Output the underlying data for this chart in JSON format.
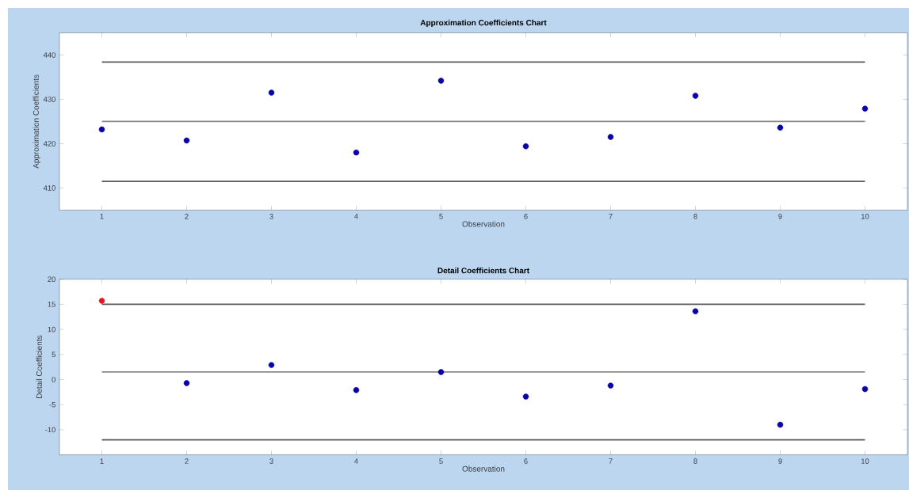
{
  "chart_data": [
    {
      "type": "scatter",
      "title": "Approximation Coefficients Chart",
      "xlabel": "Observation",
      "ylabel": "Approximation Coefficients",
      "x": [
        1,
        2,
        3,
        4,
        5,
        6,
        7,
        8,
        9,
        10
      ],
      "xlim": [
        0.5,
        10.5
      ],
      "xticks": [
        1,
        2,
        3,
        4,
        5,
        6,
        7,
        8,
        9,
        10
      ],
      "ylim": [
        405,
        445
      ],
      "yticks": [
        410,
        420,
        430,
        440
      ],
      "ref_lines": [
        {
          "axis": "y",
          "value": 438.4,
          "color": "#5a5a5a"
        },
        {
          "axis": "y",
          "value": 425,
          "color": "#8a8a8a"
        },
        {
          "axis": "y",
          "value": 411.5,
          "color": "#5a5a5a"
        }
      ],
      "series": [
        {
          "values": [
            423.2,
            420.7,
            431.5,
            418,
            434.2,
            419.4,
            421.5,
            430.8,
            423.6,
            427.9
          ],
          "colors": [
            "#0a00a8",
            "#0a00a8",
            "#0a00a8",
            "#0a00a8",
            "#0a00a8",
            "#0a00a8",
            "#0a00a8",
            "#0a00a8",
            "#0a00a8",
            "#0a00a8"
          ]
        }
      ]
    },
    {
      "type": "scatter",
      "title": "Detail Coefficients Chart",
      "xlabel": "Observation",
      "ylabel": "Detail Coefficients",
      "x": [
        1,
        2,
        3,
        4,
        5,
        6,
        7,
        8,
        9,
        10
      ],
      "xlim": [
        0.5,
        10.5
      ],
      "xticks": [
        1,
        2,
        3,
        4,
        5,
        6,
        7,
        8,
        9,
        10
      ],
      "ylim": [
        -15,
        20
      ],
      "yticks": [
        -10,
        -5,
        0,
        5,
        10,
        15,
        20
      ],
      "ref_lines": [
        {
          "axis": "y",
          "value": 15,
          "color": "#5a5a5a"
        },
        {
          "axis": "y",
          "value": 1.5,
          "color": "#8a8a8a"
        },
        {
          "axis": "y",
          "value": -12,
          "color": "#5a5a5a"
        }
      ],
      "series": [
        {
          "values": [
            15.7,
            -0.7,
            2.9,
            -2.1,
            1.5,
            -3.4,
            -1.2,
            13.6,
            -9,
            -1.9
          ],
          "colors": [
            "#e8141e",
            "#0a00a8",
            "#0a00a8",
            "#0a00a8",
            "#0a00a8",
            "#0a00a8",
            "#0a00a8",
            "#0a00a8",
            "#0a00a8",
            "#0a00a8"
          ]
        }
      ]
    }
  ]
}
